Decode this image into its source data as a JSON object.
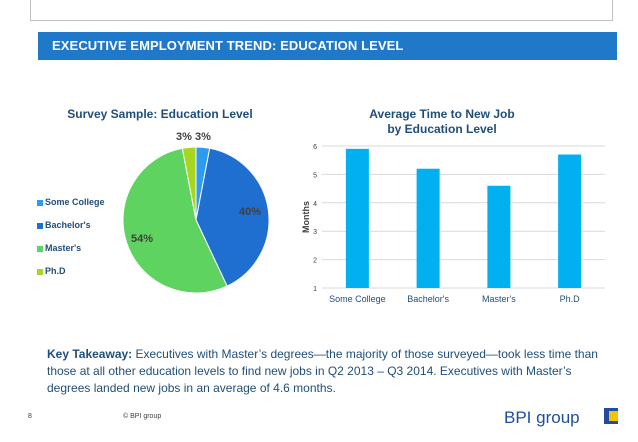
{
  "header": {
    "title": "EXECUTIVE EMPLOYMENT TREND: EDUCATION LEVEL"
  },
  "colors": {
    "banner": "#1f78c8",
    "title_text": "#1f4e79"
  },
  "chart_data": [
    {
      "type": "pie",
      "title": "Survey Sample: Education Level",
      "categories": [
        "Some College",
        "Bachelor's",
        "Master's",
        "Ph.D"
      ],
      "values": [
        3,
        40,
        54,
        3
      ],
      "labels": [
        "3%",
        "40%",
        "54%",
        "3%"
      ],
      "colors": [
        "#2e9bf0",
        "#1f6fd1",
        "#5fd35f",
        "#a6d61f"
      ],
      "legend_position": "left"
    },
    {
      "type": "bar",
      "title": "Average Time to New Job by Education Level",
      "categories": [
        "Some College",
        "Bachelor's",
        "Master's",
        "Ph.D"
      ],
      "values": [
        5.9,
        5.2,
        4.6,
        5.7
      ],
      "ylabel": "Months",
      "xlabel": "",
      "ylim": [
        1,
        6
      ],
      "yticks": [
        "1",
        "2",
        "3",
        "4",
        "5",
        "6"
      ],
      "bar_color": "#00b0f0",
      "grid": true
    }
  ],
  "takeaway": {
    "lead": "Key Takeaway:",
    "text": " Executives with Master’s degrees—the majority of those surveyed—took less time than those at all other education levels to find new jobs in Q2 2013 – Q3 2014. Executives with Master’s degrees landed new jobs in an average of 4.6 months."
  },
  "footer": {
    "page_number": "8",
    "copyright": "© BPI group",
    "logo_text": "BPI group"
  }
}
